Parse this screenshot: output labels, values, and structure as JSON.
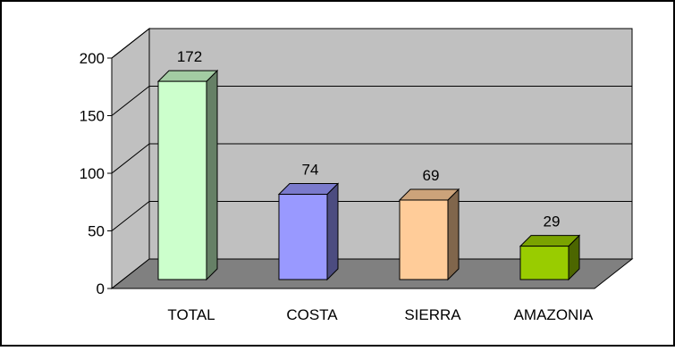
{
  "chart_data": {
    "type": "bar",
    "title": "",
    "xlabel": "",
    "ylabel": "",
    "ylim": [
      0,
      200
    ],
    "yticks": [
      0,
      50,
      100,
      150,
      200
    ],
    "grid": true,
    "legend": "none",
    "three_d": true,
    "categories": [
      "TOTAL",
      "COSTA",
      "SIERRA",
      "AMAZONIA"
    ],
    "values": [
      172,
      74,
      69,
      29
    ],
    "data_labels": [
      "172",
      "74",
      "69",
      "29"
    ],
    "colors": [
      "#ccffcc",
      "#9999ff",
      "#ffcc99",
      "#99cc00"
    ],
    "wall_color": "#c0c0c0",
    "floor_color": "#808080"
  }
}
